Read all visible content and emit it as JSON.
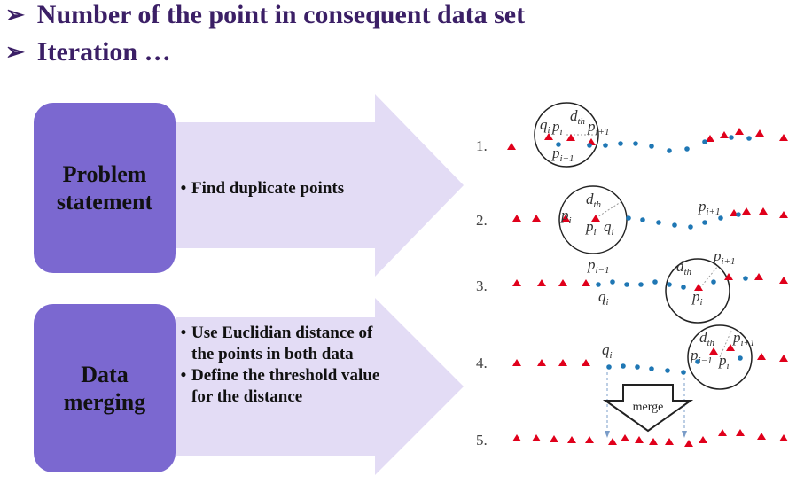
{
  "header": {
    "bullets": [
      {
        "icon": "arrow-bullet-icon",
        "text": "Number of the point in consequent data set"
      },
      {
        "icon": "arrow-bullet-icon",
        "text": "Iteration …"
      }
    ]
  },
  "steps": [
    {
      "title_line1": "Problem",
      "title_line2": "statement",
      "notes": [
        "Find duplicate points"
      ]
    },
    {
      "title_line1": "Data",
      "title_line2": "merging",
      "notes": [
        "Use Euclidian distance of the points in both data",
        "Define the threshold value for the distance"
      ]
    }
  ],
  "figure": {
    "row_numbers": [
      "1.",
      "2.",
      "3.",
      "4.",
      "5."
    ],
    "merge_label": "merge",
    "colors": {
      "red": "#e0001b",
      "blue": "#1f77b4",
      "box": "#7b68d0",
      "arrow": "#e3dcf5",
      "title": "#3b1f66"
    }
  }
}
